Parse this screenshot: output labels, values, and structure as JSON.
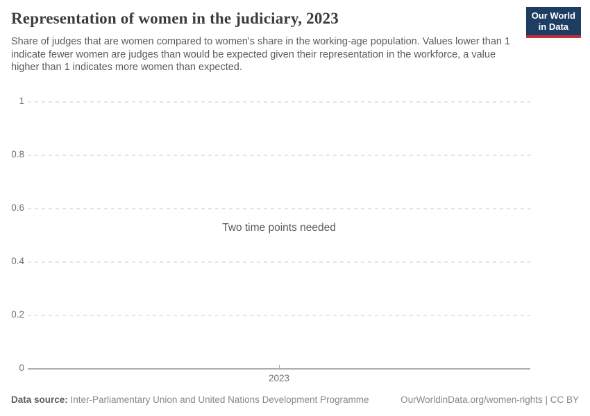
{
  "header": {
    "title": "Representation of women in the judiciary, 2023",
    "subtitle": "Share of judges that are women compared to women's share in the working-age population. Values lower than 1 indicate fewer women are judges than would be expected given their representation in the workforce, a value higher than 1 indicates more women than expected.",
    "logo": {
      "line1": "Our World",
      "line2": "in Data"
    }
  },
  "chart_data": {
    "type": "line",
    "title": "Representation of women in the judiciary, 2023",
    "series": [],
    "empty_state_message": "Two time points needed",
    "x_tick_labels": [
      "2023"
    ],
    "y_ticks": [
      1,
      0.8,
      0.6,
      0.4,
      0.2,
      0
    ],
    "y_tick_labels": [
      "1",
      "0.8",
      "0.6",
      "0.4",
      "0.2",
      "0"
    ],
    "ylim": [
      0,
      1
    ],
    "grid": "horizontal-dashed",
    "legend": "none"
  },
  "footer": {
    "datasource_label": "Data source:",
    "datasource_value": " Inter-Parliamentary Union and United Nations Development Programme",
    "attribution": "OurWorldinData.org/women-rights | CC BY"
  },
  "colors": {
    "logo_navy": "#1d3d63",
    "logo_red": "#c5303e",
    "title_text": "#3c3c3c",
    "subtitle_text": "#5b5b5b",
    "axis_text": "#6f6f6f",
    "gridline": "#e4e4e4",
    "axis_line": "#adadad",
    "background": "#ffffff"
  }
}
